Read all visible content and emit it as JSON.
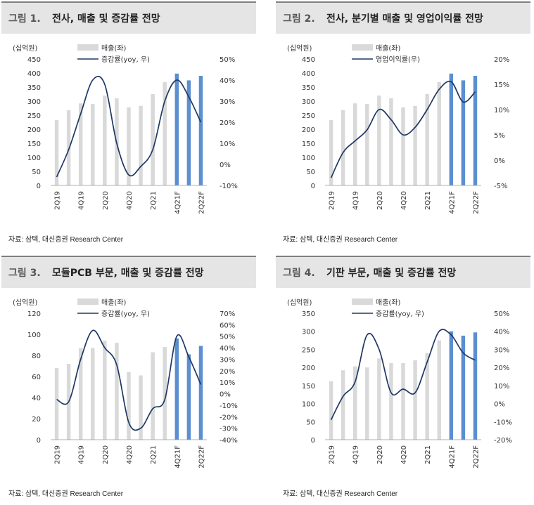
{
  "source_label": "자료: 삼텍, 대신증권 Research Center",
  "chart_data": [
    {
      "type": "bar+line",
      "figure_label": "그림 1.",
      "title": "전사, 매출 및 증감률 전망",
      "unit_label": "(십억원)",
      "legend": [
        "매출(좌)",
        "증감률(yoy, 우)"
      ],
      "categories": [
        "2Q19",
        "3Q19",
        "4Q19",
        "1Q20",
        "2Q20",
        "3Q20",
        "4Q20",
        "1Q21",
        "2Q21",
        "3Q21",
        "4Q21F",
        "1Q22F",
        "2Q22F"
      ],
      "x_tick_labels": [
        "2Q19",
        "",
        "4Q19",
        "",
        "2Q20",
        "",
        "4Q20",
        "",
        "2Q21",
        "",
        "4Q21F",
        "",
        "2Q22F"
      ],
      "forecast_from_index": 10,
      "left_axis": {
        "min": 0,
        "max": 450,
        "ticks": [
          "0",
          "50",
          "100",
          "150",
          "200",
          "250",
          "300",
          "350",
          "400",
          "450"
        ]
      },
      "right_axis": {
        "min": -10,
        "max": 50,
        "ticks": [
          "-10%",
          "0%",
          "10%",
          "20%",
          "30%",
          "40%",
          "50%"
        ]
      },
      "bars": [
        233,
        268,
        292,
        290,
        320,
        310,
        278,
        283,
        325,
        368,
        398,
        374,
        390
      ],
      "line": [
        -6,
        7,
        24,
        40,
        38,
        10,
        -5,
        -1,
        7,
        30,
        40,
        32,
        20
      ],
      "colors": {
        "actual_bar": "#d9d9d9",
        "forecast_bar": "#5b8fd1",
        "line": "#1f3864"
      }
    },
    {
      "type": "bar+line",
      "figure_label": "그림 2.",
      "title": "전사, 분기별 매출 및 영업이익률 전망",
      "unit_label": "(십억원)",
      "legend": [
        "매출(좌)",
        "영업이익률(우)"
      ],
      "categories": [
        "2Q19",
        "3Q19",
        "4Q19",
        "1Q20",
        "2Q20",
        "3Q20",
        "4Q20",
        "1Q21",
        "2Q21",
        "3Q21",
        "4Q21F",
        "1Q22F",
        "2Q22F"
      ],
      "x_tick_labels": [
        "2Q19",
        "",
        "4Q19",
        "",
        "2Q20",
        "",
        "4Q20",
        "",
        "2Q21",
        "",
        "4Q21F",
        "",
        "2Q22F"
      ],
      "forecast_from_index": 10,
      "left_axis": {
        "min": 0,
        "max": 450,
        "ticks": [
          "0",
          "50",
          "100",
          "150",
          "200",
          "250",
          "300",
          "350",
          "400",
          "450"
        ]
      },
      "right_axis": {
        "min": -5,
        "max": 20,
        "ticks": [
          "-5%",
          "0%",
          "5%",
          "10%",
          "15%",
          "20%"
        ]
      },
      "bars": [
        233,
        268,
        292,
        290,
        320,
        310,
        278,
        283,
        325,
        368,
        398,
        374,
        390
      ],
      "line": [
        -3.5,
        1.5,
        3.8,
        6,
        10,
        8,
        5,
        6.5,
        10,
        14,
        15.5,
        11.5,
        13.5
      ],
      "colors": {
        "actual_bar": "#d9d9d9",
        "forecast_bar": "#5b8fd1",
        "line": "#1f3864"
      }
    },
    {
      "type": "bar+line",
      "figure_label": "그림 3.",
      "title": "모듈PCB 부문, 매출 및 증감률 전망",
      "unit_label": "(십억원)",
      "legend": [
        "매출(좌)",
        "증감률(yoy, 우)"
      ],
      "categories": [
        "2Q19",
        "3Q19",
        "4Q19",
        "1Q20",
        "2Q20",
        "3Q20",
        "4Q20",
        "1Q21",
        "2Q21",
        "3Q21",
        "4Q21F",
        "1Q22F",
        "2Q22F"
      ],
      "x_tick_labels": [
        "2Q19",
        "",
        "4Q19",
        "",
        "2Q20",
        "",
        "4Q20",
        "",
        "2Q21",
        "",
        "4Q21F",
        "",
        "2Q22F"
      ],
      "forecast_from_index": 10,
      "left_axis": {
        "min": 0,
        "max": 120,
        "ticks": [
          "0",
          "20",
          "40",
          "60",
          "80",
          "100",
          "120"
        ]
      },
      "right_axis": {
        "min": -40,
        "max": 70,
        "ticks": [
          "-40%",
          "-30%",
          "-20%",
          "-10%",
          "0%",
          "10%",
          "20%",
          "30%",
          "40%",
          "50%",
          "60%",
          "70%"
        ]
      },
      "bars": [
        68,
        72,
        87,
        87,
        94,
        92,
        64,
        61,
        83,
        88,
        96,
        81,
        89
      ],
      "line": [
        -5,
        -7,
        30,
        55,
        40,
        25,
        -25,
        -30,
        -13,
        -5,
        50,
        32,
        8
      ],
      "colors": {
        "actual_bar": "#d9d9d9",
        "forecast_bar": "#5b8fd1",
        "line": "#1f3864"
      }
    },
    {
      "type": "bar+line",
      "figure_label": "그림 4.",
      "title": "기판 부문, 매출 및 증감률 전망",
      "unit_label": "(십억원)",
      "legend": [
        "매출(좌)",
        "증감률(yoy, 우)"
      ],
      "categories": [
        "2Q19",
        "3Q19",
        "4Q19",
        "1Q20",
        "2Q20",
        "3Q20",
        "4Q20",
        "1Q21",
        "2Q21",
        "3Q21",
        "4Q21F",
        "1Q22F",
        "2Q22F"
      ],
      "x_tick_labels": [
        "2Q19",
        "",
        "4Q19",
        "",
        "2Q20",
        "",
        "4Q20",
        "",
        "2Q21",
        "",
        "4Q21F",
        "",
        "2Q22F"
      ],
      "forecast_from_index": 10,
      "left_axis": {
        "min": 0,
        "max": 350,
        "ticks": [
          "0",
          "50",
          "100",
          "150",
          "200",
          "250",
          "300",
          "350"
        ]
      },
      "right_axis": {
        "min": -20,
        "max": 50,
        "ticks": [
          "-20%",
          "-10%",
          "0%",
          "10%",
          "20%",
          "30%",
          "40%",
          "50%"
        ]
      },
      "bars": [
        162,
        192,
        203,
        200,
        225,
        212,
        212,
        220,
        240,
        275,
        300,
        288,
        297
      ],
      "line": [
        -9,
        4,
        12,
        38,
        30,
        6,
        8,
        6,
        23,
        40,
        38,
        28,
        24
      ],
      "colors": {
        "actual_bar": "#d9d9d9",
        "forecast_bar": "#5b8fd1",
        "line": "#1f3864"
      }
    }
  ]
}
